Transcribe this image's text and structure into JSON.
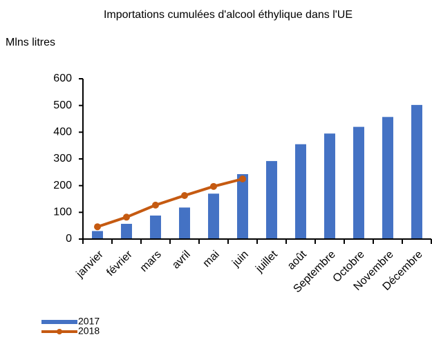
{
  "chart_data": {
    "type": "bar",
    "title": "Importations cumulées d'alcool éthylique dans l'UE",
    "y_label": "Mlns litres",
    "categories": [
      "janvier",
      "février",
      "mars",
      "avril",
      "mai",
      "juin",
      "juillet",
      "août",
      "Septembre",
      "Octobre",
      "Novembre",
      "Décembre"
    ],
    "series": [
      {
        "name": "2017",
        "type": "bar",
        "color": "#4472c4",
        "values": [
          30,
          57,
          88,
          118,
          170,
          243,
          292,
          355,
          395,
          420,
          457,
          502
        ]
      },
      {
        "name": "2018",
        "type": "line",
        "color": "#c55a11",
        "values": [
          46,
          82,
          127,
          163,
          197,
          225,
          null,
          null,
          null,
          null,
          null,
          null
        ]
      }
    ],
    "ylim": [
      0,
      600
    ],
    "yticks": [
      0,
      100,
      200,
      300,
      400,
      500,
      600
    ],
    "grid": false,
    "legend": "bottom-left"
  }
}
